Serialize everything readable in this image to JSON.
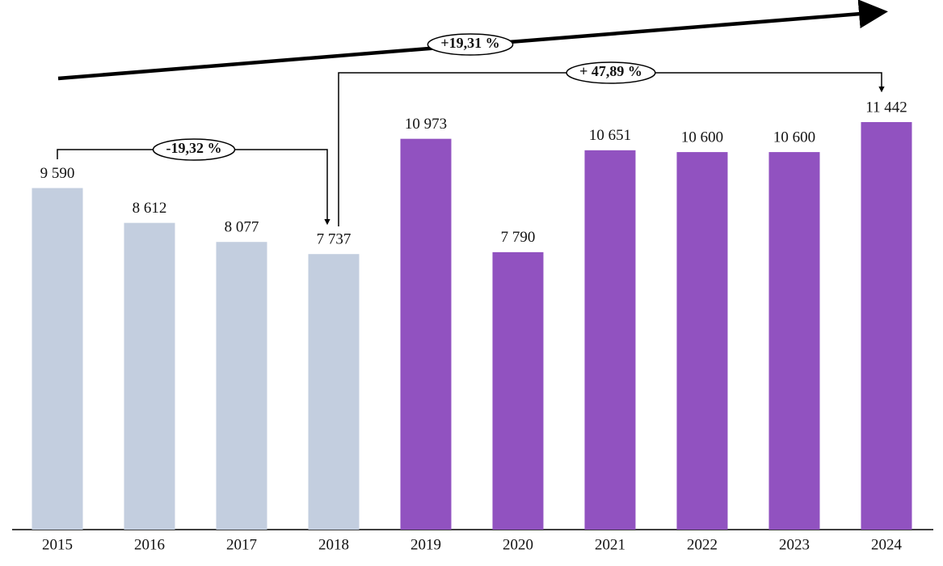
{
  "chart_data": {
    "type": "bar",
    "categories": [
      "2015",
      "2016",
      "2017",
      "2018",
      "2019",
      "2020",
      "2021",
      "2022",
      "2023",
      "2024"
    ],
    "values": [
      9590,
      8612,
      8077,
      7737,
      10973,
      7790,
      10651,
      10600,
      10600,
      11442
    ],
    "value_labels": [
      "9 590",
      "8 612",
      "8 077",
      "7 737",
      "10 973",
      "7 790",
      "10 651",
      "10 600",
      "10 600",
      "11 442"
    ],
    "colors": [
      "#c3cedf",
      "#c3cedf",
      "#c3cedf",
      "#c3cedf",
      "#9152c0",
      "#9152c0",
      "#9152c0",
      "#9152c0",
      "#9152c0",
      "#9152c0"
    ],
    "annotations": [
      "-19,32 %",
      "+ 47,89 %",
      "+19,31 %"
    ]
  }
}
